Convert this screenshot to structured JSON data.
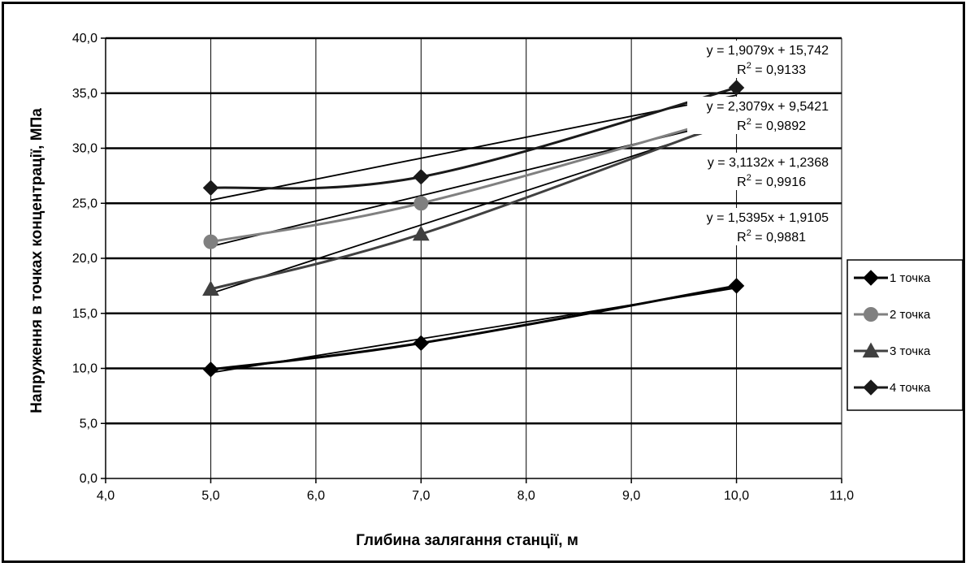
{
  "chart_data": {
    "type": "line",
    "title": "",
    "xlabel": "Глибина залягання станції, м",
    "ylabel": "Напруження в точках концентрації, МПа",
    "xlim": [
      4.0,
      11.0
    ],
    "ylim": [
      0.0,
      40.0
    ],
    "x_ticks": [
      "4,0",
      "5,0",
      "6,0",
      "7,0",
      "8,0",
      "9,0",
      "10,0",
      "11,0"
    ],
    "y_ticks": [
      "0,0",
      "5,0",
      "10,0",
      "15,0",
      "20,0",
      "25,0",
      "30,0",
      "35,0",
      "40,0"
    ],
    "grid": true,
    "legend_position": "right",
    "x": [
      5.0,
      7.0,
      10.0
    ],
    "series": [
      {
        "name": "1 точка",
        "values": [
          9.9,
          12.3,
          17.5
        ],
        "marker": "diamond",
        "color": "#000000"
      },
      {
        "name": "2 точка",
        "values": [
          21.5,
          25.0,
          33.0
        ],
        "marker": "circle",
        "color": "#808080"
      },
      {
        "name": "3 точка",
        "values": [
          17.2,
          22.2,
          32.6
        ],
        "marker": "triangle",
        "color": "#404040"
      },
      {
        "name": "4 точка",
        "values": [
          26.4,
          27.4,
          35.5
        ],
        "marker": "diamond",
        "color": "#1a1a1a"
      }
    ],
    "trendlines": [
      {
        "slope": 1.9079,
        "intercept": 15.742,
        "equation": "y = 1,9079x + 15,742",
        "r2_text": "R² = 0,9133"
      },
      {
        "slope": 2.3079,
        "intercept": 9.5421,
        "equation": "y = 2,3079x + 9,5421",
        "r2_text": "R² = 0,9892"
      },
      {
        "slope": 3.1132,
        "intercept": 1.2368,
        "equation": "y = 3,1132x + 1,2368",
        "r2_text": "R² = 0,9916"
      },
      {
        "slope": 1.5395,
        "intercept": 1.9105,
        "equation": "y = 1,5395x + 1,9105",
        "r2_text": "R² = 0,9881"
      }
    ]
  }
}
